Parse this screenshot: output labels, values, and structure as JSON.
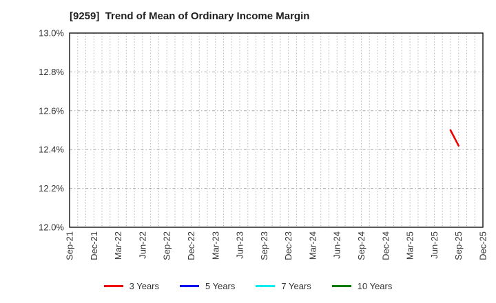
{
  "title": "[9259]  Trend of Mean of Ordinary Income Margin",
  "chart_data": {
    "type": "line",
    "title": "[9259]  Trend of Mean of Ordinary Income Margin",
    "xlabel": "",
    "ylabel": "",
    "y_axis": {
      "min": 12.0,
      "max": 13.0,
      "tick_step": 0.2,
      "tick_labels": [
        "12.0%",
        "12.2%",
        "12.4%",
        "12.6%",
        "12.8%",
        "13.0%"
      ],
      "unit": "%"
    },
    "x_axis": {
      "tick_labels": [
        "Sep-21",
        "Dec-21",
        "Mar-22",
        "Jun-22",
        "Sep-22",
        "Dec-22",
        "Mar-23",
        "Jun-23",
        "Sep-23",
        "Dec-23",
        "Mar-24",
        "Jun-24",
        "Sep-24",
        "Dec-24",
        "Mar-25",
        "Jun-25",
        "Sep-25",
        "Dec-25"
      ],
      "months_per_tick": 3,
      "months_total": 51,
      "start_label": "Sep-21",
      "end_label": "Dec-25"
    },
    "grid": {
      "vertical": "dotted, monthly",
      "horizontal": "dash-dot, every 0.2%",
      "color": "#aaaaaa"
    },
    "legend_position": "bottom-center",
    "series": [
      {
        "name": "3 Years",
        "color": "#ee0000",
        "points": [
          {
            "x_label": "Aug-25",
            "month_index": 47,
            "value": 12.5
          },
          {
            "x_label": "Sep-25",
            "month_index": 48,
            "value": 12.42
          }
        ]
      },
      {
        "name": "5 Years",
        "color": "#0000ee",
        "points": []
      },
      {
        "name": "7 Years",
        "color": "#00eeee",
        "points": []
      },
      {
        "name": "10 Years",
        "color": "#007700",
        "points": []
      }
    ]
  }
}
